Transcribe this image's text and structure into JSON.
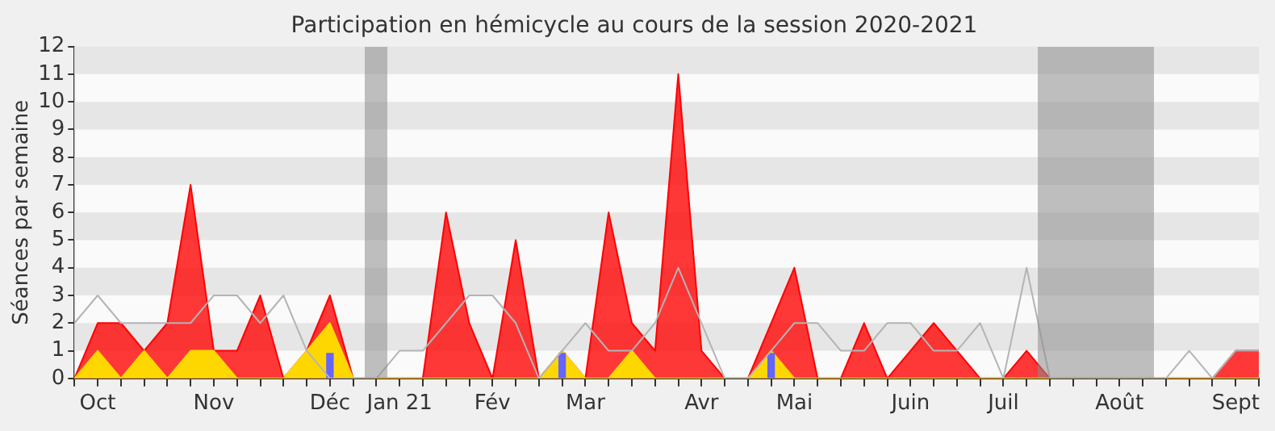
{
  "chart_data": {
    "type": "area",
    "title": "Participation en hémicycle au cours de la session 2020-2021",
    "ylabel": "Séances par semaine",
    "categories": [
      null,
      "Oct",
      null,
      null,
      null,
      null,
      "Nov",
      null,
      null,
      null,
      null,
      "Déc",
      null,
      null,
      "Jan 21",
      null,
      null,
      null,
      "Fév",
      null,
      null,
      null,
      "Mar",
      null,
      null,
      null,
      null,
      "Avr",
      null,
      null,
      null,
      "Mai",
      null,
      null,
      null,
      null,
      "Juin",
      null,
      null,
      null,
      "Juil",
      null,
      null,
      null,
      null,
      "Août",
      null,
      null,
      null,
      null,
      "Sept",
      null
    ],
    "series": [
      {
        "type": "line",
        "color": "#b4b4b4",
        "values": [
          2,
          3,
          2,
          2,
          2,
          2,
          3,
          3,
          2,
          3,
          1,
          0,
          0,
          0,
          1,
          1,
          2,
          3,
          3,
          2,
          0,
          1,
          2,
          1,
          1,
          2,
          4,
          2,
          0,
          0,
          1,
          2,
          2,
          1,
          1,
          2,
          2,
          1,
          1,
          2,
          0,
          4,
          0,
          0,
          0,
          0,
          0,
          0,
          1,
          0,
          1,
          1
        ]
      },
      {
        "color": "#ff0000",
        "values": [
          0,
          2,
          2,
          1,
          2,
          7,
          1,
          1,
          3,
          0,
          1,
          3,
          0,
          0,
          0,
          0,
          6,
          2,
          0,
          5,
          0,
          1,
          0,
          6,
          2,
          1,
          11,
          1,
          0,
          0,
          2,
          4,
          0,
          0,
          2,
          0,
          1,
          2,
          1,
          0,
          0,
          1,
          0,
          0,
          0,
          0,
          0,
          0,
          0,
          0,
          1,
          1
        ]
      },
      {
        "color": "#ffd700",
        "values": [
          0,
          1,
          0,
          1,
          0,
          1,
          1,
          0,
          0,
          0,
          1,
          2,
          0,
          0,
          0,
          0,
          0,
          0,
          0,
          0,
          0,
          1,
          0,
          0,
          1,
          0,
          0,
          0,
          0,
          0,
          1,
          0,
          0,
          0,
          0,
          0,
          0,
          0,
          0,
          0,
          0,
          0,
          0,
          0,
          0,
          0,
          0,
          0,
          0,
          0,
          0,
          0
        ]
      },
      {
        "type": "bar",
        "color": "#6464ff",
        "values": [
          null,
          null,
          null,
          null,
          null,
          null,
          null,
          null,
          null,
          null,
          null,
          0.9,
          null,
          null,
          null,
          null,
          null,
          null,
          null,
          null,
          null,
          0.9,
          null,
          null,
          null,
          null,
          null,
          null,
          null,
          null,
          0.9,
          null,
          null,
          null,
          null,
          null,
          null,
          null,
          null,
          null,
          null,
          null,
          null,
          null,
          null,
          null,
          null,
          null,
          null,
          null,
          null,
          null
        ]
      }
    ],
    "ylim": [
      0,
      12
    ],
    "yticks": [
      0,
      1,
      2,
      3,
      4,
      5,
      6,
      7,
      8,
      9,
      10,
      11,
      12
    ],
    "bands": [
      {
        "axis": "y",
        "from": 1,
        "to": 2,
        "color": "#e6e6e6"
      },
      {
        "axis": "y",
        "from": 3,
        "to": 4,
        "color": "#e6e6e6"
      },
      {
        "axis": "y",
        "from": 5,
        "to": 6,
        "color": "#e6e6e6"
      },
      {
        "axis": "y",
        "from": 7,
        "to": 8,
        "color": "#e6e6e6"
      },
      {
        "axis": "y",
        "from": 9,
        "to": 10,
        "color": "#e6e6e6"
      },
      {
        "axis": "y",
        "from": 11,
        "to": 12,
        "color": "#e6e6e6"
      }
    ],
    "legend": false
  }
}
